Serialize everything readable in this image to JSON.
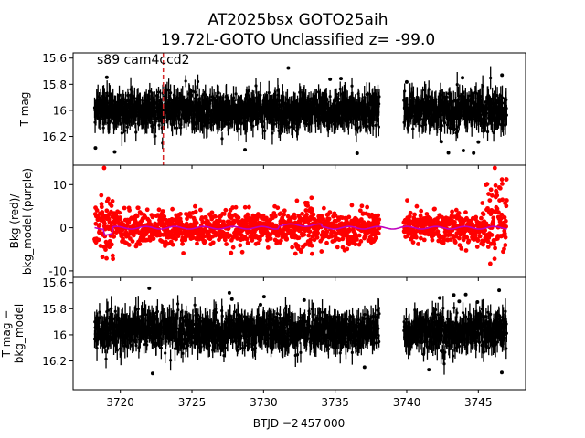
{
  "title_line1": "AT2025bsx  GOTO25aih",
  "title_line2": "19.72L-GOTO Unclassified z= -99.0",
  "xlabel": "BTJD −2 457 000",
  "colors": {
    "lightcurve": "#000000",
    "background": "#ff0000",
    "bkg_model": "#bf00bf",
    "event_marker": "#d62728"
  },
  "chart_data": [
    {
      "type": "scatter",
      "panel": "top",
      "ylabel": "T mag",
      "annotation": "s89 cam4ccd2",
      "xlim": [
        3716.7,
        3748.3
      ],
      "ylim": [
        16.42,
        15.56
      ],
      "y_inverted": true,
      "yticks": [
        15.6,
        15.8,
        16.0,
        16.2
      ],
      "event_x": 3723.0,
      "segments": [
        [
          3718.2,
          3738.1
        ],
        [
          3739.8,
          3747.0
        ]
      ],
      "median": 16.0,
      "scatter": 0.12,
      "series": [
        {
          "name": "T mag",
          "color": "#000000"
        }
      ]
    },
    {
      "type": "scatter",
      "panel": "middle",
      "ylabel_line1": "Bkg (red)/",
      "ylabel_line2": "bkg_model (purple)",
      "xlim": [
        3716.7,
        3748.3
      ],
      "ylim": [
        -11.5,
        14.5
      ],
      "yticks": [
        -10,
        0,
        10
      ],
      "segments": [
        [
          3718.2,
          3738.1
        ],
        [
          3739.8,
          3747.0
        ]
      ],
      "series": [
        {
          "name": "Bkg",
          "color": "#ff0000"
        },
        {
          "name": "bkg_model",
          "color": "#bf00bf"
        }
      ]
    },
    {
      "type": "scatter",
      "panel": "bottom",
      "ylabel_line1": "T mag −",
      "ylabel_line2": "bkg_model",
      "xlim": [
        3716.7,
        3748.3
      ],
      "ylim": [
        16.42,
        15.56
      ],
      "y_inverted": true,
      "yticks": [
        15.6,
        15.8,
        16.0,
        16.2
      ],
      "xticks": [
        3720,
        3725,
        3730,
        3735,
        3740,
        3745
      ],
      "segments": [
        [
          3718.2,
          3738.1
        ],
        [
          3739.8,
          3747.0
        ]
      ],
      "median": 15.97,
      "scatter": 0.12,
      "series": [
        {
          "name": "T mag - bkg_model",
          "color": "#000000"
        }
      ]
    }
  ]
}
